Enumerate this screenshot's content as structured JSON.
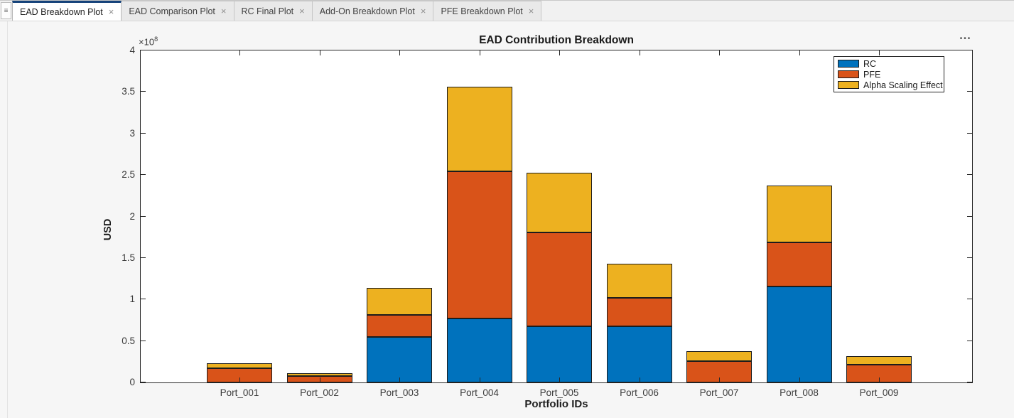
{
  "window": {
    "grip_glyph": "≡",
    "options_glyph": "•••",
    "tab_close_glyph": "×",
    "tabs": [
      {
        "label": "EAD Breakdown Plot",
        "active": true
      },
      {
        "label": "EAD Comparison Plot",
        "active": false
      },
      {
        "label": "RC Final Plot",
        "active": false
      },
      {
        "label": "Add-On Breakdown Plot",
        "active": false
      },
      {
        "label": "PFE Breakdown Plot",
        "active": false
      }
    ]
  },
  "chart_data": {
    "type": "bar",
    "stacked": true,
    "title": "EAD Contribution Breakdown",
    "xlabel": "Portfolio IDs",
    "ylabel": "USD",
    "y_axis_multiplier_base": "×10",
    "y_axis_multiplier_exponent": "8",
    "grid": false,
    "legend_position": "northeast",
    "ylim": [
      0,
      400000000
    ],
    "ytick_values": [
      0,
      50000000,
      100000000,
      150000000,
      200000000,
      250000000,
      300000000,
      350000000,
      400000000
    ],
    "ytick_labels": [
      "0",
      "0.5",
      "1",
      "1.5",
      "2",
      "2.5",
      "3",
      "3.5",
      "4"
    ],
    "categories": [
      "Port_001",
      "Port_002",
      "Port_003",
      "Port_004",
      "Port_005",
      "Port_006",
      "Port_007",
      "Port_008",
      "Port_009"
    ],
    "series": [
      {
        "name": "RC",
        "color": "#0072BD",
        "values": [
          0,
          0,
          55000000,
          77000000,
          68000000,
          68000000,
          0,
          116000000,
          0
        ]
      },
      {
        "name": "PFE",
        "color": "#D95319",
        "values": [
          17000000,
          8000000,
          26000000,
          177000000,
          113000000,
          34000000,
          26000000,
          53000000,
          21000000
        ]
      },
      {
        "name": "Alpha Scaling Effect",
        "color": "#EDB120",
        "values": [
          6000000,
          3000000,
          33000000,
          102000000,
          72000000,
          41000000,
          12000000,
          68000000,
          11000000
        ]
      }
    ]
  }
}
